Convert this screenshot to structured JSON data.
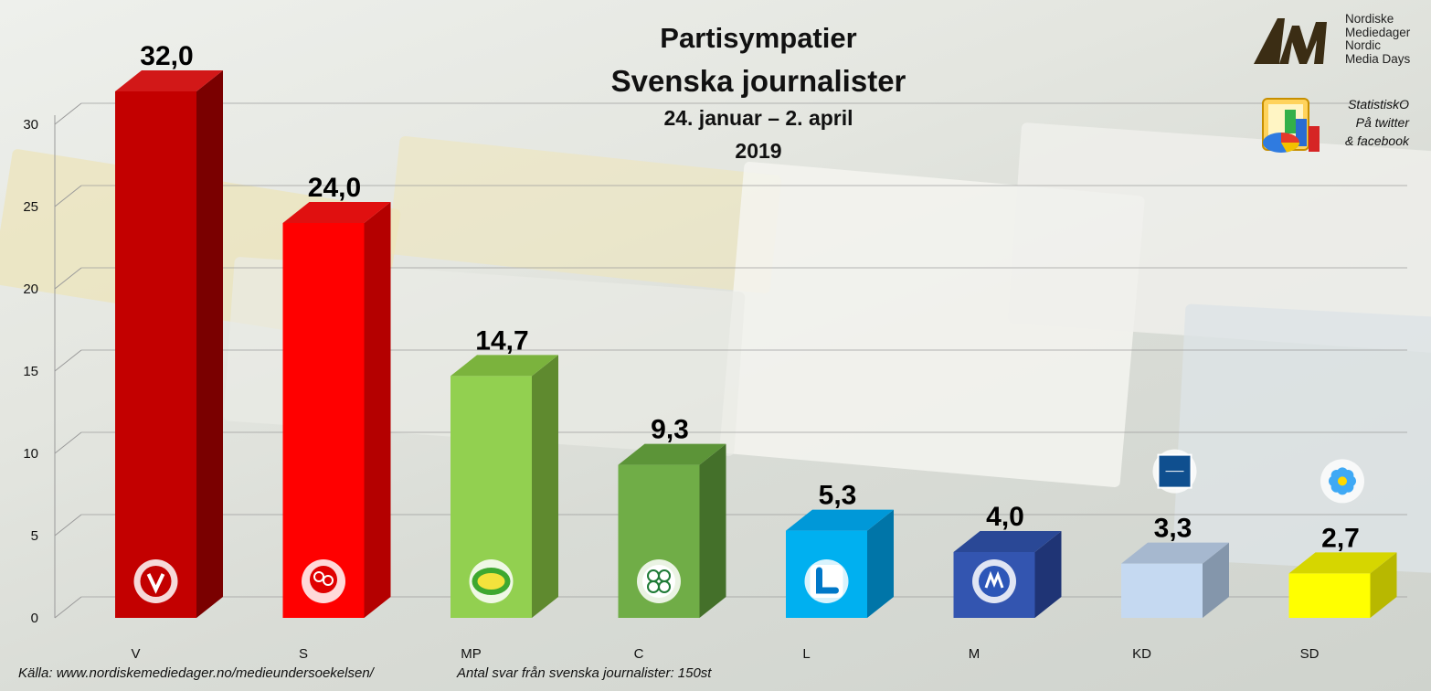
{
  "title": {
    "line1": "Partisympatier",
    "line2": "Svenska journalister",
    "line3": "24. januar – 2. april",
    "line4": "2019"
  },
  "branding": {
    "logo_lines": [
      "Nordiske",
      "Mediedager",
      "Nordic",
      "Media Days"
    ],
    "stat_lines": [
      "StatistiskO",
      "På twitter",
      "& facebook"
    ]
  },
  "footer": {
    "source": "Källa: www.nordiskemediedager.no/medieundersoekelsen/",
    "responses": "Antal svar från svenska journalister: 150st"
  },
  "chart_data": {
    "type": "bar",
    "categories": [
      "V",
      "S",
      "MP",
      "C",
      "L",
      "M",
      "KD",
      "SD"
    ],
    "values": [
      32.0,
      24.0,
      14.7,
      9.3,
      5.3,
      4.0,
      3.3,
      2.7
    ],
    "value_labels": [
      "32,0",
      "24,0",
      "14,7",
      "9,3",
      "5,3",
      "4,0",
      "3,3",
      "2,7"
    ],
    "ylim": [
      0,
      35
    ],
    "yticks": [
      0,
      5,
      10,
      15,
      20,
      25,
      30
    ],
    "grid": true,
    "title": "",
    "xlabel": "",
    "ylabel": "",
    "colors": [
      {
        "front": "#c30000",
        "side": "#7a0000",
        "top": "#d21818"
      },
      {
        "front": "#ff0000",
        "side": "#b40000",
        "top": "#e01010"
      },
      {
        "front": "#92d050",
        "side": "#5f8a2f",
        "top": "#7bb33d"
      },
      {
        "front": "#70ad47",
        "side": "#44702a",
        "top": "#5c9438"
      },
      {
        "front": "#00b0f0",
        "side": "#0075a8",
        "top": "#0098d8"
      },
      {
        "front": "#3355b0",
        "side": "#1f3475",
        "top": "#2a4896"
      },
      {
        "front": "#c5d9f1",
        "side": "#8496ab",
        "top": "#a6b8cf"
      },
      {
        "front": "#ffff00",
        "side": "#b8b800",
        "top": "#d6d600"
      }
    ],
    "icons": [
      "v-party-icon",
      "rose-icon",
      "sunflower-icon",
      "clover-icon",
      "l-party-icon",
      "m-party-icon",
      "kd-logo-icon",
      "anemone-icon"
    ]
  }
}
